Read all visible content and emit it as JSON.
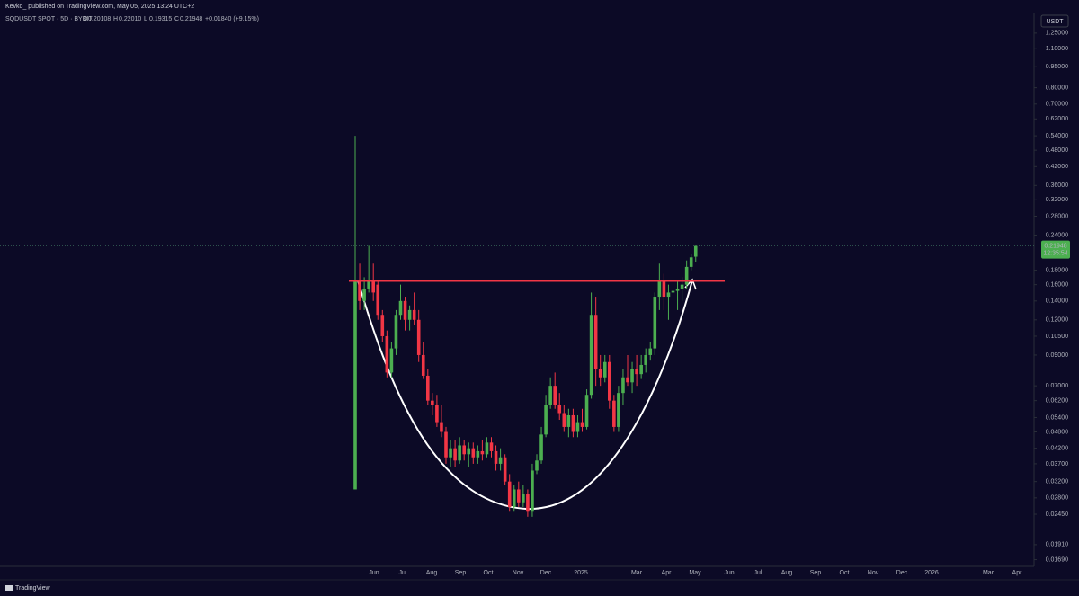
{
  "header": {
    "publisher": "Kevko_ published on TradingView.com, May 05, 2025 13:24 UTC+2",
    "symbol": "SQDUSDT SPOT · 5D · BYBIT",
    "ohlc": [
      {
        "key": "O",
        "text": "0.20108"
      },
      {
        "key": "H",
        "text": "0.22010"
      },
      {
        "key": "L",
        "text": "0.19315"
      },
      {
        "key": "C",
        "text": "0.21948"
      }
    ],
    "change": "+0.01840 (+9.15%)"
  },
  "chart_data": {
    "type": "candlestick",
    "currency": "USDT",
    "log_scale": true,
    "ylim": [
      0.016,
      1.58
    ],
    "yticks": [
      {
        "value": 1.25,
        "label": "1.25000"
      },
      {
        "value": 1.1,
        "label": "1.10000"
      },
      {
        "value": 0.95,
        "label": "0.95000"
      },
      {
        "value": 0.8,
        "label": "0.80000"
      },
      {
        "value": 0.7,
        "label": "0.70000"
      },
      {
        "value": 0.62,
        "label": "0.62000"
      },
      {
        "value": 0.54,
        "label": "0.54000"
      },
      {
        "value": 0.48,
        "label": "0.48000"
      },
      {
        "value": 0.42,
        "label": "0.42000"
      },
      {
        "value": 0.36,
        "label": "0.36000"
      },
      {
        "value": 0.32,
        "label": "0.32000"
      },
      {
        "value": 0.28,
        "label": "0.28000"
      },
      {
        "value": 0.24,
        "label": "0.24000"
      },
      {
        "value": 0.18,
        "label": "0.18000"
      },
      {
        "value": 0.16,
        "label": "0.16000"
      },
      {
        "value": 0.14,
        "label": "0.14000"
      },
      {
        "value": 0.12,
        "label": "0.12000"
      },
      {
        "value": 0.105,
        "label": "0.10500"
      },
      {
        "value": 0.09,
        "label": "0.09000"
      },
      {
        "value": 0.07,
        "label": "0.07000"
      },
      {
        "value": 0.062,
        "label": "0.06200"
      },
      {
        "value": 0.054,
        "label": "0.05400"
      },
      {
        "value": 0.048,
        "label": "0.04800"
      },
      {
        "value": 0.042,
        "label": "0.04200"
      },
      {
        "value": 0.037,
        "label": "0.03700"
      },
      {
        "value": 0.032,
        "label": "0.03200"
      },
      {
        "value": 0.028,
        "label": "0.02800"
      },
      {
        "value": 0.0245,
        "label": "0.02450"
      },
      {
        "value": 0.0191,
        "label": "0.01910"
      },
      {
        "value": 0.0169,
        "label": "0.01690"
      }
    ],
    "x_labels": [
      "Jun",
      "Jul",
      "Aug",
      "Sep",
      "Oct",
      "Nov",
      "Dec",
      "2025",
      "Mar",
      "Apr",
      "May",
      "Jun",
      "Jul",
      "Aug",
      "Sep",
      "Oct",
      "Nov",
      "Dec",
      "2026",
      "Mar",
      "Apr"
    ],
    "candles": {
      "open": [
        0.03,
        0.165,
        0.14,
        0.155,
        0.165,
        0.16,
        0.125,
        0.105,
        0.078,
        0.095,
        0.125,
        0.14,
        0.12,
        0.13,
        0.12,
        0.09,
        0.076,
        0.062,
        0.06,
        0.052,
        0.048,
        0.039,
        0.042,
        0.038,
        0.043,
        0.04,
        0.042,
        0.039,
        0.041,
        0.04,
        0.044,
        0.041,
        0.037,
        0.039,
        0.032,
        0.026,
        0.03,
        0.027,
        0.029,
        0.025,
        0.035,
        0.038,
        0.047,
        0.06,
        0.07,
        0.06,
        0.056,
        0.05,
        0.055,
        0.048,
        0.052,
        0.05,
        0.065,
        0.125,
        0.08,
        0.075,
        0.085,
        0.062,
        0.05,
        0.066,
        0.075,
        0.072,
        0.08,
        0.077,
        0.083,
        0.09,
        0.095,
        0.145,
        0.165,
        0.145,
        0.15,
        0.152,
        0.155,
        0.16,
        0.185,
        0.20108
      ],
      "high": [
        0.54,
        0.19,
        0.17,
        0.22,
        0.19,
        0.165,
        0.13,
        0.11,
        0.1,
        0.13,
        0.16,
        0.145,
        0.135,
        0.15,
        0.13,
        0.1,
        0.08,
        0.066,
        0.065,
        0.06,
        0.05,
        0.045,
        0.045,
        0.046,
        0.045,
        0.044,
        0.044,
        0.043,
        0.045,
        0.046,
        0.046,
        0.043,
        0.042,
        0.04,
        0.034,
        0.031,
        0.032,
        0.031,
        0.03,
        0.037,
        0.04,
        0.05,
        0.065,
        0.075,
        0.078,
        0.066,
        0.06,
        0.058,
        0.058,
        0.055,
        0.058,
        0.068,
        0.15,
        0.145,
        0.09,
        0.09,
        0.09,
        0.065,
        0.07,
        0.08,
        0.09,
        0.085,
        0.09,
        0.09,
        0.095,
        0.1,
        0.15,
        0.19,
        0.175,
        0.16,
        0.16,
        0.165,
        0.17,
        0.195,
        0.205,
        0.2201
      ],
      "low": [
        0.03,
        0.13,
        0.13,
        0.15,
        0.14,
        0.12,
        0.1,
        0.075,
        0.075,
        0.09,
        0.12,
        0.11,
        0.11,
        0.115,
        0.085,
        0.074,
        0.06,
        0.055,
        0.05,
        0.046,
        0.037,
        0.036,
        0.036,
        0.037,
        0.038,
        0.036,
        0.037,
        0.037,
        0.038,
        0.039,
        0.039,
        0.035,
        0.035,
        0.031,
        0.025,
        0.025,
        0.026,
        0.026,
        0.024,
        0.024,
        0.034,
        0.037,
        0.046,
        0.058,
        0.058,
        0.053,
        0.048,
        0.046,
        0.046,
        0.046,
        0.048,
        0.049,
        0.063,
        0.07,
        0.07,
        0.072,
        0.058,
        0.048,
        0.048,
        0.06,
        0.07,
        0.066,
        0.07,
        0.074,
        0.078,
        0.086,
        0.09,
        0.13,
        0.13,
        0.12,
        0.125,
        0.13,
        0.14,
        0.155,
        0.18,
        0.19315
      ],
      "close": [
        0.165,
        0.14,
        0.155,
        0.165,
        0.15,
        0.125,
        0.105,
        0.078,
        0.095,
        0.125,
        0.14,
        0.12,
        0.13,
        0.12,
        0.09,
        0.076,
        0.062,
        0.06,
        0.052,
        0.048,
        0.039,
        0.042,
        0.038,
        0.043,
        0.04,
        0.042,
        0.039,
        0.041,
        0.04,
        0.044,
        0.041,
        0.037,
        0.039,
        0.032,
        0.026,
        0.03,
        0.027,
        0.029,
        0.025,
        0.035,
        0.038,
        0.047,
        0.06,
        0.07,
        0.06,
        0.056,
        0.05,
        0.055,
        0.048,
        0.052,
        0.05,
        0.065,
        0.125,
        0.08,
        0.075,
        0.085,
        0.062,
        0.05,
        0.066,
        0.075,
        0.072,
        0.08,
        0.077,
        0.083,
        0.09,
        0.095,
        0.145,
        0.165,
        0.145,
        0.15,
        0.152,
        0.155,
        0.16,
        0.185,
        0.2,
        0.21948
      ]
    },
    "up_color": "#4caf50",
    "down_color": "#f23645",
    "resistance": {
      "value": 0.165,
      "color": "#f23645"
    },
    "last_price": {
      "value": 0.21948,
      "label": "0.21948",
      "countdown": "12:35:54"
    }
  },
  "footer": {
    "brand": "TradingView"
  }
}
